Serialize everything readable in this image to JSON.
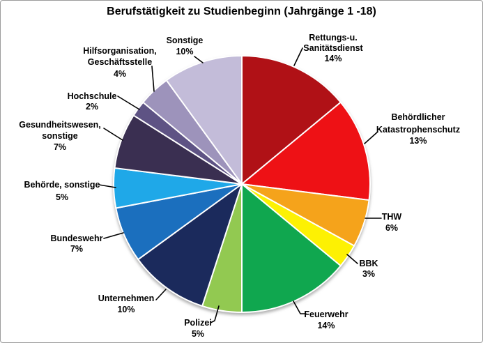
{
  "frame": {
    "background": "#FFFFFF",
    "border_color": "#9B9B9B"
  },
  "chart_data": {
    "type": "pie",
    "title": "Berufstätigkeit zu Studienbeginn (Jahrgänge 1 -18)",
    "unit": "percent",
    "start_angle_deg": 0,
    "direction": "clockwise",
    "legend": "none — category labels with percentages placed outside slices with black leader lines",
    "slice_border_color": "#FFFFFF",
    "label_color": "#000000",
    "slices": [
      {
        "name": "Rettungs-u. Sanitätsdienst",
        "value": 14,
        "pct_text": "14%",
        "color": "#B01116",
        "display_lines": [
          "Rettungs-u.",
          "Sanitätsdienst"
        ]
      },
      {
        "name": "Behördlicher Katastrophenschutz",
        "value": 13,
        "pct_text": "13%",
        "color": "#EE1115",
        "display_lines": [
          "Behördlicher",
          "Katastrophenschutz"
        ]
      },
      {
        "name": "THW",
        "value": 6,
        "pct_text": "6%",
        "color": "#F5A31B",
        "display_lines": [
          "THW"
        ]
      },
      {
        "name": "BBK",
        "value": 3,
        "pct_text": "3%",
        "color": "#FDF103",
        "display_lines": [
          "BBK"
        ]
      },
      {
        "name": "Feuerwehr",
        "value": 14,
        "pct_text": "14%",
        "color": "#10A74F",
        "display_lines": [
          "Feuerwehr"
        ]
      },
      {
        "name": "Polizei",
        "value": 5,
        "pct_text": "5%",
        "color": "#92C951",
        "display_lines": [
          "Polizei"
        ]
      },
      {
        "name": "Unternehmen",
        "value": 10,
        "pct_text": "10%",
        "color": "#1B2A5C",
        "display_lines": [
          "Unternehmen"
        ]
      },
      {
        "name": "Bundeswehr",
        "value": 7,
        "pct_text": "7%",
        "color": "#1B6FBE",
        "display_lines": [
          "Bundeswehr"
        ]
      },
      {
        "name": "Behörde, sonstige",
        "value": 5,
        "pct_text": "5%",
        "color": "#1FA8E8",
        "display_lines": [
          "Behörde, sonstige"
        ]
      },
      {
        "name": "Gesundheitswesen, sonstige",
        "value": 7,
        "pct_text": "7%",
        "color": "#3A2F51",
        "display_lines": [
          "Gesundheitswesen,",
          "sonstige"
        ]
      },
      {
        "name": "Hochschule",
        "value": 2,
        "pct_text": "2%",
        "color": "#5E5384",
        "display_lines": [
          "Hochschule"
        ]
      },
      {
        "name": "Hilfsorganisation, Geschäftsstelle",
        "value": 4,
        "pct_text": "4%",
        "color": "#9D93BB",
        "display_lines": [
          "Hilfsorganisation,",
          "Geschäftsstelle"
        ]
      },
      {
        "name": "Sonstige",
        "value": 10,
        "pct_text": "10%",
        "color": "#C3BCD9",
        "display_lines": [
          "Sonstige"
        ]
      }
    ]
  }
}
